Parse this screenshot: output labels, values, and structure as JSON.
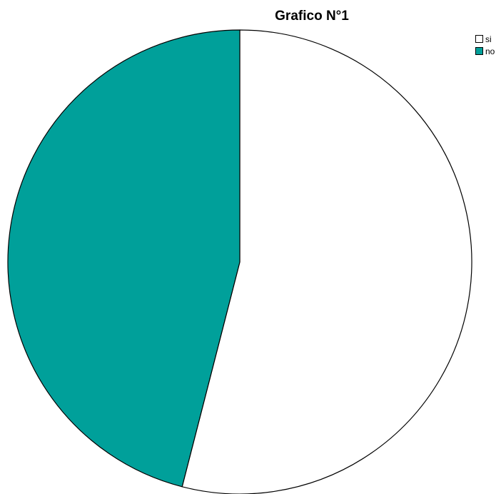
{
  "chart_data": {
    "type": "pie",
    "title": "Grafico N°1",
    "legend_position": "top-right",
    "slices": [
      {
        "label": "si",
        "value": 54,
        "color": "#ffffff"
      },
      {
        "label": "no",
        "value": 46,
        "color": "#00a09a"
      }
    ],
    "start_angle_deg": 0,
    "direction": "clockwise",
    "stroke_color": "#000000"
  }
}
